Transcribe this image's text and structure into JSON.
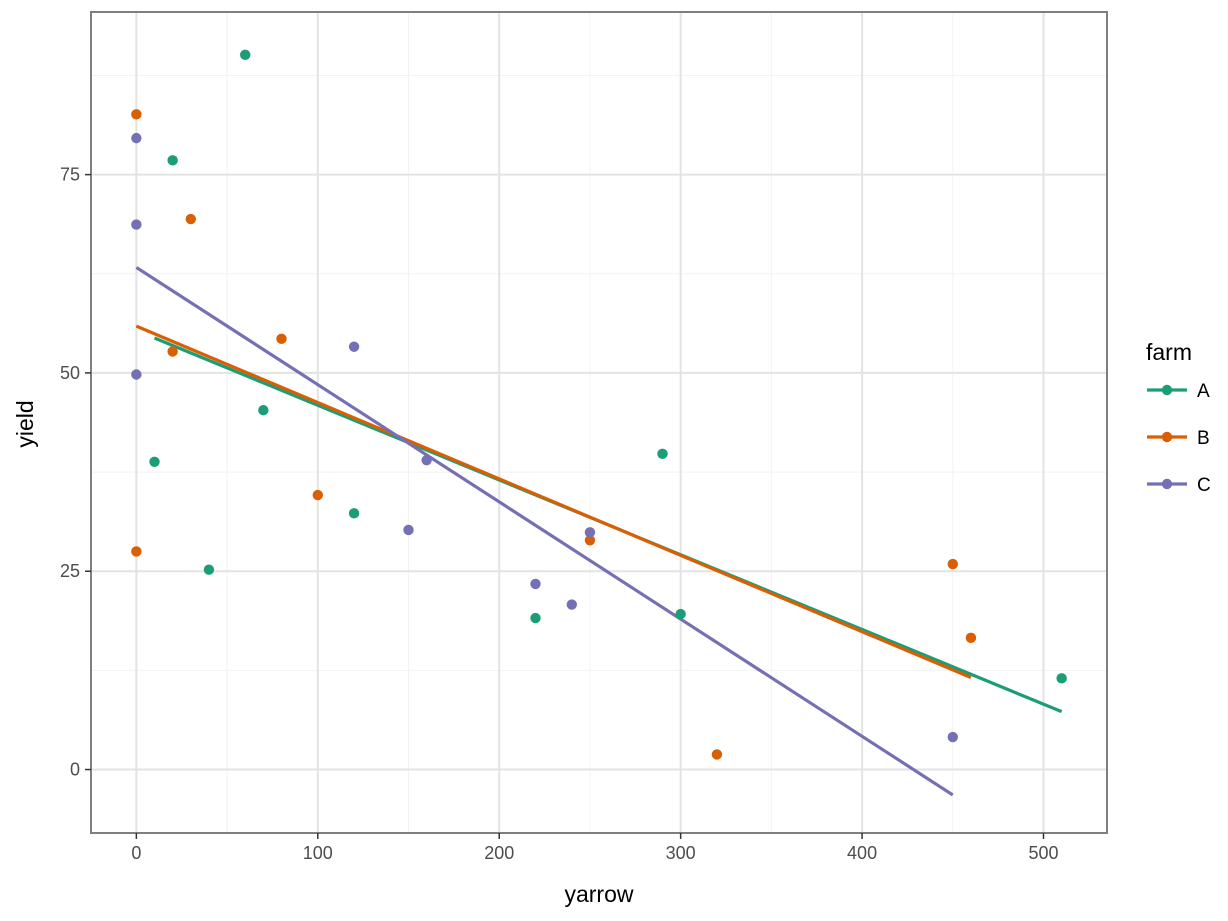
{
  "chart_data": {
    "type": "scatter",
    "title": "",
    "xlabel": "yarrow",
    "ylabel": "yield",
    "xlim": [
      -25,
      535
    ],
    "ylim": [
      -8,
      95.5
    ],
    "xticks": [
      0,
      100,
      200,
      300,
      400,
      500
    ],
    "yticks": [
      0,
      25,
      50,
      75
    ],
    "grid": true,
    "legend": {
      "title": "farm",
      "position": "right"
    },
    "series": [
      {
        "name": "A",
        "color": "#1b9e77",
        "points": [
          {
            "x": 10,
            "y": 38.8
          },
          {
            "x": 20,
            "y": 76.8
          },
          {
            "x": 40,
            "y": 25.2
          },
          {
            "x": 60,
            "y": 90.1
          },
          {
            "x": 70,
            "y": 45.3
          },
          {
            "x": 120,
            "y": 32.3
          },
          {
            "x": 220,
            "y": 19.1
          },
          {
            "x": 290,
            "y": 39.8
          },
          {
            "x": 300,
            "y": 19.6
          },
          {
            "x": 510,
            "y": 11.5
          }
        ],
        "fit": {
          "x": [
            10,
            510
          ],
          "y": [
            54.4,
            7.3
          ]
        }
      },
      {
        "name": "B",
        "color": "#d95f02",
        "points": [
          {
            "x": 0,
            "y": 82.6
          },
          {
            "x": 0,
            "y": 27.5
          },
          {
            "x": 20,
            "y": 52.7
          },
          {
            "x": 30,
            "y": 69.4
          },
          {
            "x": 80,
            "y": 54.3
          },
          {
            "x": 100,
            "y": 34.6
          },
          {
            "x": 250,
            "y": 28.9
          },
          {
            "x": 320,
            "y": 1.9
          },
          {
            "x": 450,
            "y": 25.9
          },
          {
            "x": 460,
            "y": 16.6
          }
        ],
        "fit": {
          "x": [
            0,
            460
          ],
          "y": [
            55.9,
            11.6
          ]
        }
      },
      {
        "name": "C",
        "color": "#7570b3",
        "points": [
          {
            "x": 0,
            "y": 79.6
          },
          {
            "x": 0,
            "y": 68.7
          },
          {
            "x": 0,
            "y": 49.8
          },
          {
            "x": 120,
            "y": 53.3
          },
          {
            "x": 150,
            "y": 30.2
          },
          {
            "x": 160,
            "y": 39.0
          },
          {
            "x": 220,
            "y": 23.4
          },
          {
            "x": 240,
            "y": 20.8
          },
          {
            "x": 250,
            "y": 29.9
          },
          {
            "x": 450,
            "y": 4.1
          }
        ],
        "fit": {
          "x": [
            0,
            450
          ],
          "y": [
            63.3,
            -3.2
          ]
        }
      }
    ]
  }
}
